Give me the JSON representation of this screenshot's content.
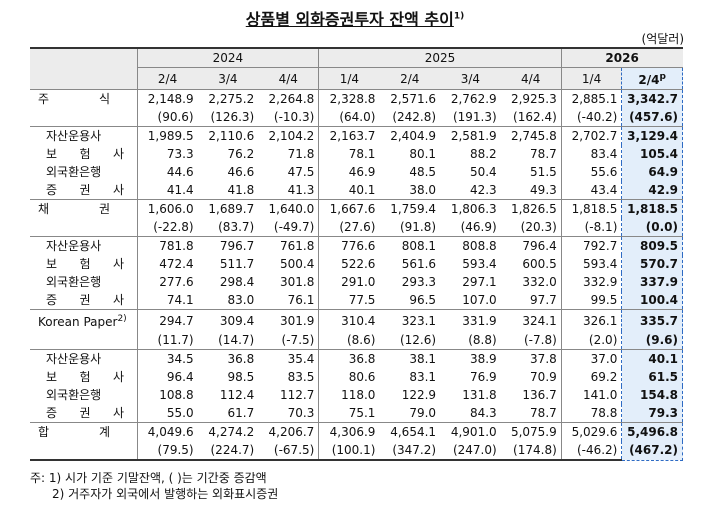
{
  "title": "상품별 외화증권투자 잔액 추이",
  "title_note": "1)",
  "unit": "(억달러)",
  "columns": [
    {
      "year": "2024",
      "quarters": [
        "2/4",
        "3/4",
        "4/4"
      ]
    },
    {
      "year": "2025",
      "quarters": [
        "1/4",
        "2/4",
        "3/4",
        "4/4"
      ]
    },
    {
      "year": "2026",
      "quarters": [
        "1/4",
        "2/4"
      ],
      "preliminary_mark": "p"
    }
  ],
  "groups": [
    {
      "label": "주 식",
      "values": [
        "2,148.9",
        "2,275.2",
        "2,264.8",
        "2,328.8",
        "2,571.6",
        "2,762.9",
        "2,925.3",
        "2,885.1",
        "3,342.7"
      ],
      "changes": [
        "(90.6)",
        "(126.3)",
        "(-10.3)",
        "(64.0)",
        "(242.8)",
        "(191.3)",
        "(162.4)",
        "(-40.2)",
        "(457.6)"
      ],
      "subrows": [
        {
          "label": "자산운용사",
          "values": [
            "1,989.5",
            "2,110.6",
            "2,104.2",
            "2,163.7",
            "2,404.9",
            "2,581.9",
            "2,745.8",
            "2,702.7",
            "3,129.4"
          ]
        },
        {
          "label": "보 험 사",
          "values": [
            "73.3",
            "76.2",
            "71.8",
            "78.1",
            "80.1",
            "88.2",
            "78.7",
            "83.4",
            "105.4"
          ]
        },
        {
          "label": "외국환은행",
          "values": [
            "44.6",
            "46.6",
            "47.5",
            "46.9",
            "48.5",
            "50.4",
            "51.5",
            "55.6",
            "64.9"
          ]
        },
        {
          "label": "증 권 사",
          "values": [
            "41.4",
            "41.8",
            "41.3",
            "40.1",
            "38.0",
            "42.3",
            "49.3",
            "43.4",
            "42.9"
          ]
        }
      ]
    },
    {
      "label": "채 권",
      "values": [
        "1,606.0",
        "1,689.7",
        "1,640.0",
        "1,667.6",
        "1,759.4",
        "1,806.3",
        "1,826.5",
        "1,818.5",
        "1,818.5"
      ],
      "changes": [
        "(-22.8)",
        "(83.7)",
        "(-49.7)",
        "(27.6)",
        "(91.8)",
        "(46.9)",
        "(20.3)",
        "(-8.1)",
        "(0.0)"
      ],
      "subrows": [
        {
          "label": "자산운용사",
          "values": [
            "781.8",
            "796.7",
            "761.8",
            "776.6",
            "808.1",
            "808.8",
            "796.4",
            "792.7",
            "809.5"
          ]
        },
        {
          "label": "보 험 사",
          "values": [
            "472.4",
            "511.7",
            "500.4",
            "522.6",
            "561.6",
            "593.4",
            "600.5",
            "593.4",
            "570.7"
          ]
        },
        {
          "label": "외국환은행",
          "values": [
            "277.6",
            "298.4",
            "301.8",
            "291.0",
            "293.3",
            "297.1",
            "332.0",
            "332.9",
            "337.9"
          ]
        },
        {
          "label": "증 권 사",
          "values": [
            "74.1",
            "83.0",
            "76.1",
            "77.5",
            "96.5",
            "107.0",
            "97.7",
            "99.5",
            "100.4"
          ]
        }
      ]
    },
    {
      "label": "Korean Paper",
      "note": "2)",
      "values": [
        "294.7",
        "309.4",
        "301.9",
        "310.4",
        "323.1",
        "331.9",
        "324.1",
        "326.1",
        "335.7"
      ],
      "changes": [
        "(11.7)",
        "(14.7)",
        "(-7.5)",
        "(8.6)",
        "(12.6)",
        "(8.8)",
        "(-7.8)",
        "(2.0)",
        "(9.6)"
      ],
      "subrows": [
        {
          "label": "자산운용사",
          "values": [
            "34.5",
            "36.8",
            "35.4",
            "36.8",
            "38.1",
            "38.9",
            "37.8",
            "37.0",
            "40.1"
          ]
        },
        {
          "label": "보 험 사",
          "values": [
            "96.4",
            "98.5",
            "83.5",
            "80.6",
            "83.1",
            "76.9",
            "70.9",
            "69.2",
            "61.5"
          ]
        },
        {
          "label": "외국환은행",
          "values": [
            "108.8",
            "112.4",
            "112.7",
            "118.0",
            "122.9",
            "131.8",
            "136.7",
            "141.0",
            "154.8"
          ]
        },
        {
          "label": "증 권 사",
          "values": [
            "55.0",
            "61.7",
            "70.3",
            "75.1",
            "79.0",
            "84.3",
            "78.7",
            "78.8",
            "79.3"
          ]
        }
      ]
    },
    {
      "label": "합 계",
      "values": [
        "4,049.6",
        "4,274.2",
        "4,206.7",
        "4,306.9",
        "4,654.1",
        "4,901.0",
        "5,075.9",
        "5,029.6",
        "5,496.8"
      ],
      "changes": [
        "(79.5)",
        "(224.7)",
        "(-67.5)",
        "(100.1)",
        "(347.2)",
        "(247.0)",
        "(174.8)",
        "(-46.2)",
        "(467.2)"
      ],
      "subrows": []
    }
  ],
  "notes": [
    "주: 1) 시가 기준 기말잔액, (    )는 기간중 증감액",
    "2) 거주자가 외국에서 발행하는 외화표시증권"
  ]
}
